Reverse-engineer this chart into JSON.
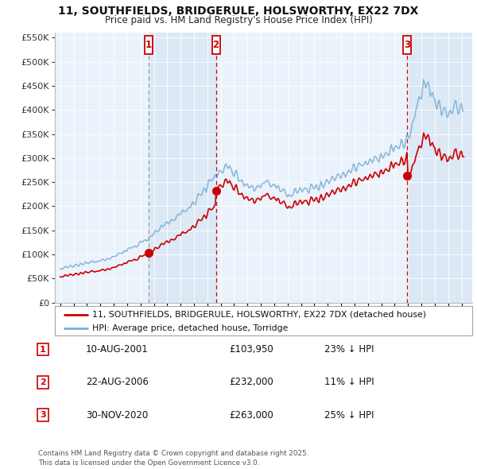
{
  "title": "11, SOUTHFIELDS, BRIDGERULE, HOLSWORTHY, EX22 7DX",
  "subtitle": "Price paid vs. HM Land Registry's House Price Index (HPI)",
  "legend_entry1": "11, SOUTHFIELDS, BRIDGERULE, HOLSWORTHY, EX22 7DX (detached house)",
  "legend_entry2": "HPI: Average price, detached house, Torridge",
  "footer": "Contains HM Land Registry data © Crown copyright and database right 2025.\nThis data is licensed under the Open Government Licence v3.0.",
  "transactions": [
    {
      "num": 1,
      "date": "10-AUG-2001",
      "price": "£103,950",
      "pct": "23% ↓ HPI"
    },
    {
      "num": 2,
      "date": "22-AUG-2006",
      "price": "£232,000",
      "pct": "11% ↓ HPI"
    },
    {
      "num": 3,
      "date": "30-NOV-2020",
      "price": "£263,000",
      "pct": "25% ↓ HPI"
    }
  ],
  "sale_dates_decimal": [
    2001.608,
    2006.638,
    2020.917
  ],
  "sale_prices": [
    103950,
    232000,
    263000
  ],
  "hpi_color": "#7bafd4",
  "price_color": "#cc0000",
  "shade_color": "#dce8f5",
  "background_color": "#eaf2fb",
  "ylim": [
    0,
    560000
  ],
  "yticks": [
    0,
    50000,
    100000,
    150000,
    200000,
    250000,
    300000,
    350000,
    400000,
    450000,
    500000,
    550000
  ],
  "xlim_start": 1994.6,
  "xlim_end": 2025.8
}
